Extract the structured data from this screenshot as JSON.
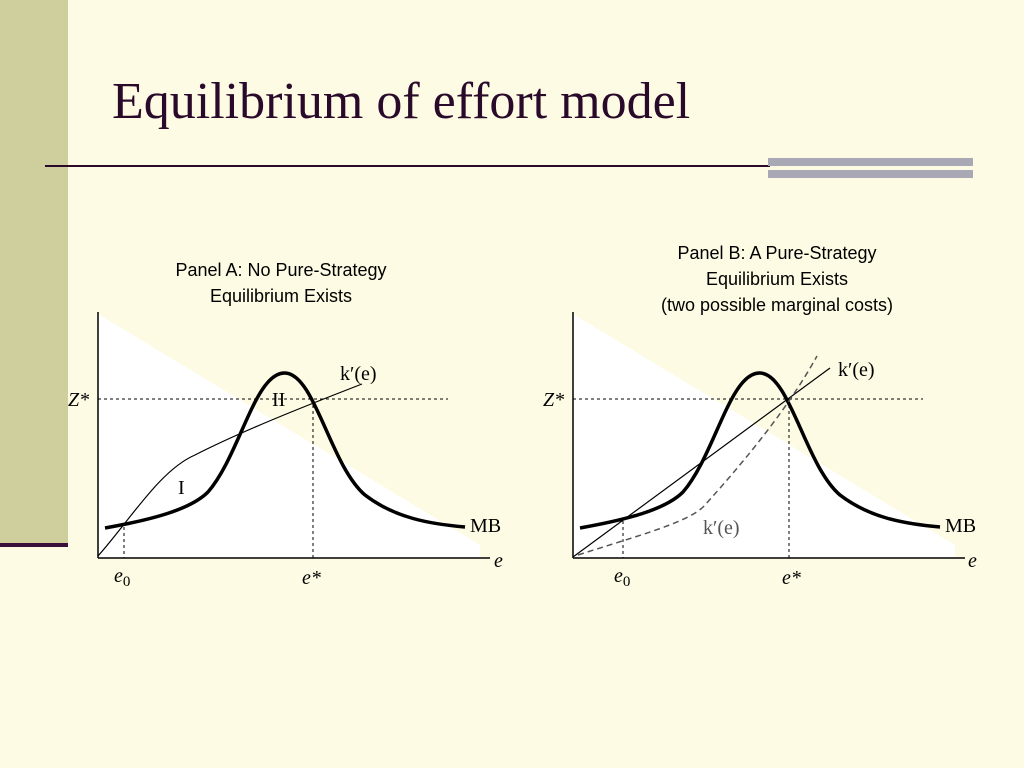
{
  "title": "Equilibrium of effort model",
  "panels": [
    {
      "title_lines": [
        "Panel A: No Pure-Strategy",
        "Equilibrium Exists"
      ],
      "z_label": "Z*",
      "k_label": "k′(e)",
      "region_labels": [
        "I",
        "II"
      ],
      "mb_label": "MB",
      "x_axis_label": "e",
      "e0_label": {
        "base": "e",
        "sub": "0"
      },
      "estar_label": "e*"
    },
    {
      "title_lines": [
        "Panel B: A Pure-Strategy",
        "Equilibrium Exists",
        "(two possible marginal costs)"
      ],
      "z_label": "Z*",
      "k_labels": [
        "k′(e)",
        "k′(e)"
      ],
      "mb_label": "MB",
      "x_axis_label": "e",
      "e0_label": {
        "base": "e",
        "sub": "0"
      },
      "estar_label": "e*"
    }
  ]
}
